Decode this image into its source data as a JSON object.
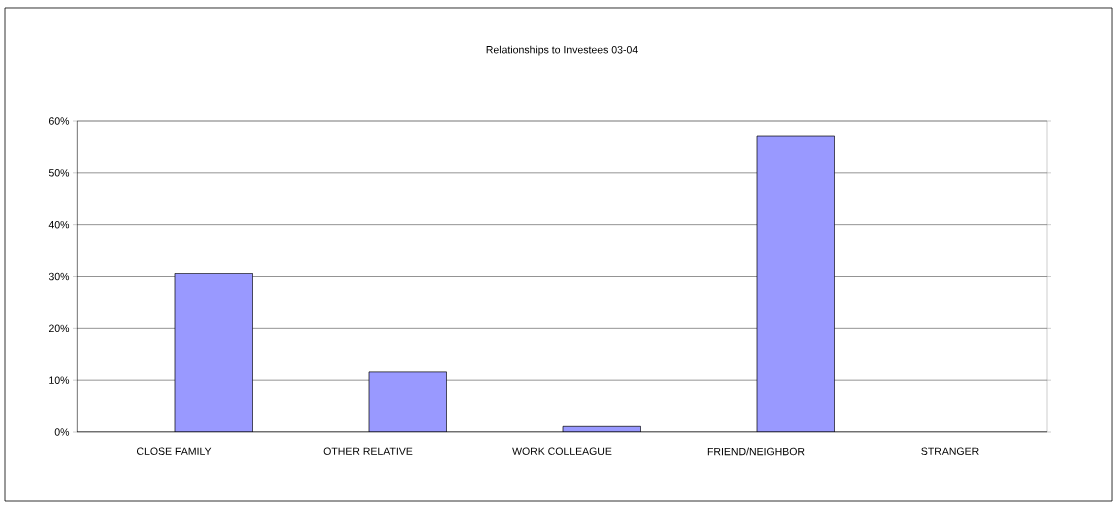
{
  "chart_data": {
    "type": "bar",
    "title": "Relationships to Investees 03-04",
    "categories": [
      "CLOSE FAMILY",
      "OTHER RELATIVE",
      "WORK COLLEAGUE",
      "FRIEND/NEIGHBOR",
      "STRANGER"
    ],
    "values": [
      30.6,
      11.6,
      1.1,
      57.1,
      0
    ],
    "color": "#9999ff",
    "ylim": [
      0,
      60
    ],
    "yticks": [
      {
        "value": 0,
        "label": "0%"
      },
      {
        "value": 10,
        "label": "10%"
      },
      {
        "value": 20,
        "label": "20%"
      },
      {
        "value": 30,
        "label": "30%"
      },
      {
        "value": 40,
        "label": "40%"
      },
      {
        "value": 50,
        "label": "50%"
      },
      {
        "value": 60,
        "label": "60%"
      }
    ],
    "grid": "y"
  }
}
